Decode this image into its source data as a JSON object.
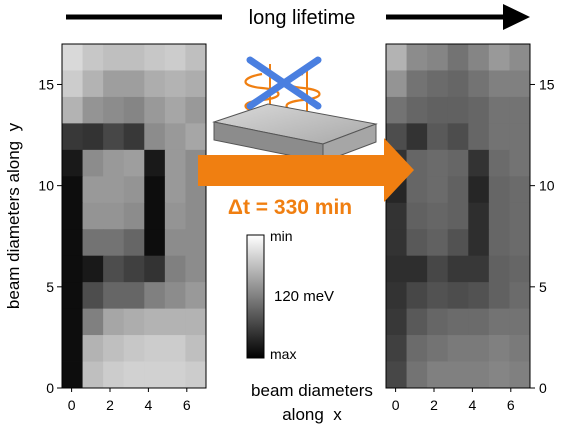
{
  "header": {
    "label": "long lifetime"
  },
  "panels": {
    "y_axis_label": "beam diameters along  y",
    "x_axis_label_line1": "beam diameters",
    "x_axis_label_line2": "along  x",
    "y_ticks": [
      "0",
      "5",
      "10",
      "15"
    ],
    "x_ticks": [
      "0",
      "2",
      "4",
      "6"
    ]
  },
  "transfer": {
    "time_label": "Δt = 330 min",
    "arrow_color": "#f07f11",
    "crossed_mark_color": "#4a7fe0"
  },
  "colorbar": {
    "top_label": "min",
    "mid_label": "120 meV",
    "bottom_label": "max"
  },
  "chart_data": [
    {
      "type": "heatmap",
      "title": "",
      "xlabel": "beam diameters along x",
      "ylabel": "beam diameters along y",
      "xlim": [
        -0.5,
        7
      ],
      "ylim": [
        0,
        17
      ],
      "rows": [
        [
          0.15,
          0.22,
          0.25,
          0.25,
          0.22,
          0.2,
          0.25
        ],
        [
          0.2,
          0.3,
          0.38,
          0.38,
          0.32,
          0.3,
          0.32
        ],
        [
          0.3,
          0.42,
          0.45,
          0.48,
          0.4,
          0.35,
          0.4
        ],
        [
          0.78,
          0.8,
          0.72,
          0.78,
          0.45,
          0.4,
          0.35
        ],
        [
          0.9,
          0.45,
          0.4,
          0.38,
          0.9,
          0.4,
          0.45
        ],
        [
          0.95,
          0.4,
          0.4,
          0.42,
          0.95,
          0.4,
          0.45
        ],
        [
          0.95,
          0.42,
          0.42,
          0.45,
          0.95,
          0.42,
          0.45
        ],
        [
          0.95,
          0.55,
          0.55,
          0.6,
          0.95,
          0.45,
          0.45
        ],
        [
          0.95,
          0.9,
          0.7,
          0.75,
          0.8,
          0.5,
          0.45
        ],
        [
          0.95,
          0.7,
          0.6,
          0.6,
          0.5,
          0.45,
          0.4
        ],
        [
          0.95,
          0.5,
          0.35,
          0.32,
          0.3,
          0.3,
          0.3
        ],
        [
          0.95,
          0.3,
          0.25,
          0.22,
          0.2,
          0.2,
          0.25
        ],
        [
          0.95,
          0.25,
          0.2,
          0.18,
          0.18,
          0.18,
          0.2
        ]
      ]
    },
    {
      "type": "heatmap",
      "title": "",
      "xlabel": "beam diameters along x",
      "ylabel": "",
      "xlim": [
        -0.5,
        7
      ],
      "ylim": [
        0,
        17
      ],
      "rows": [
        [
          0.3,
          0.45,
          0.48,
          0.55,
          0.48,
          0.4,
          0.45
        ],
        [
          0.42,
          0.55,
          0.58,
          0.6,
          0.55,
          0.5,
          0.5
        ],
        [
          0.55,
          0.6,
          0.62,
          0.62,
          0.6,
          0.55,
          0.55
        ],
        [
          0.7,
          0.8,
          0.65,
          0.7,
          0.6,
          0.55,
          0.55
        ],
        [
          0.8,
          0.6,
          0.58,
          0.6,
          0.8,
          0.58,
          0.55
        ],
        [
          0.85,
          0.6,
          0.58,
          0.62,
          0.85,
          0.6,
          0.58
        ],
        [
          0.8,
          0.62,
          0.6,
          0.62,
          0.82,
          0.6,
          0.58
        ],
        [
          0.8,
          0.65,
          0.62,
          0.68,
          0.82,
          0.6,
          0.58
        ],
        [
          0.82,
          0.82,
          0.72,
          0.78,
          0.78,
          0.62,
          0.6
        ],
        [
          0.8,
          0.72,
          0.68,
          0.7,
          0.68,
          0.62,
          0.58
        ],
        [
          0.78,
          0.65,
          0.6,
          0.58,
          0.58,
          0.55,
          0.55
        ],
        [
          0.75,
          0.58,
          0.55,
          0.52,
          0.52,
          0.5,
          0.52
        ],
        [
          0.72,
          0.55,
          0.5,
          0.5,
          0.5,
          0.48,
          0.5
        ]
      ]
    }
  ]
}
